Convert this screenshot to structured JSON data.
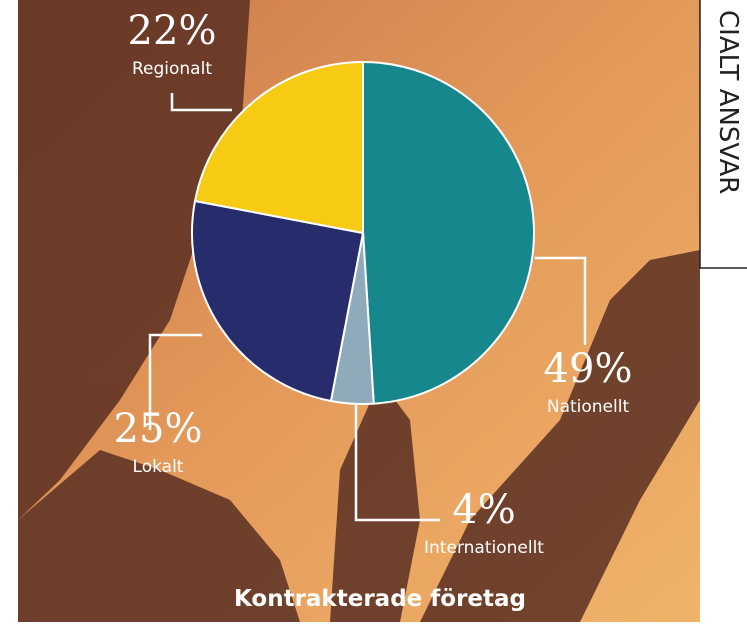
{
  "chart_data": {
    "type": "pie",
    "title": "Kontrakterade företag",
    "categories": [
      "Nationellt",
      "Internationellt",
      "Lokalt",
      "Regionalt"
    ],
    "values": [
      49,
      4,
      25,
      22
    ],
    "value_labels": [
      "49%",
      "4%",
      "25%",
      "22%"
    ],
    "colors": [
      "#16878c",
      "#8faabb",
      "#272c6c",
      "#f7ca13"
    ]
  },
  "side_tab": "CIALT ANSVAR"
}
